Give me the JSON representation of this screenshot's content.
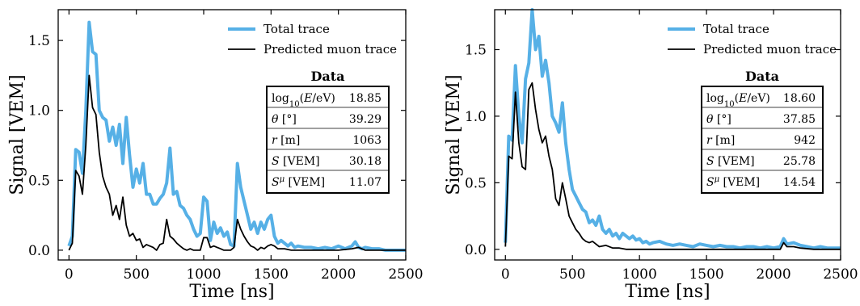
{
  "chart_data": [
    {
      "type": "line",
      "xlabel": "Time [ns]",
      "ylabel": "Signal [VEM]",
      "xlim": [
        -80,
        2500
      ],
      "ylim": [
        -0.07,
        1.72
      ],
      "xticks": [
        "0",
        "500",
        "1000",
        "1500",
        "2000",
        "2500"
      ],
      "yticks": [
        "0.0",
        "0.5",
        "1.0",
        "1.5"
      ],
      "xtick_values": [
        0,
        500,
        1000,
        1500,
        2000,
        2500
      ],
      "ytick_values": [
        0,
        0.5,
        1.0,
        1.5
      ],
      "legend": {
        "position": "top-right",
        "entries": [
          "Total trace",
          "Predicted muon trace"
        ]
      },
      "series": [
        {
          "name": "Total trace",
          "color": "#56b0e6",
          "x": [
            0,
            25,
            50,
            75,
            100,
            125,
            150,
            175,
            200,
            225,
            250,
            275,
            300,
            325,
            350,
            375,
            400,
            425,
            450,
            475,
            500,
            525,
            550,
            575,
            600,
            625,
            650,
            675,
            700,
            725,
            750,
            775,
            800,
            825,
            850,
            875,
            900,
            925,
            950,
            975,
            1000,
            1025,
            1050,
            1075,
            1100,
            1125,
            1150,
            1175,
            1200,
            1225,
            1250,
            1275,
            1300,
            1325,
            1350,
            1375,
            1400,
            1425,
            1450,
            1475,
            1500,
            1525,
            1550,
            1575,
            1600,
            1625,
            1650,
            1675,
            1700,
            1750,
            1800,
            1850,
            1900,
            1950,
            2000,
            2050,
            2100,
            2125,
            2150,
            2175,
            2200,
            2250,
            2300,
            2350,
            2400,
            2450,
            2500
          ],
          "y": [
            0.03,
            0.1,
            0.72,
            0.7,
            0.55,
            1.0,
            1.63,
            1.42,
            1.4,
            1.0,
            0.95,
            0.93,
            0.78,
            0.88,
            0.75,
            0.9,
            0.62,
            0.95,
            0.68,
            0.45,
            0.58,
            0.48,
            0.62,
            0.4,
            0.4,
            0.33,
            0.33,
            0.37,
            0.4,
            0.48,
            0.73,
            0.4,
            0.42,
            0.32,
            0.3,
            0.25,
            0.22,
            0.15,
            0.1,
            0.12,
            0.38,
            0.35,
            0.07,
            0.2,
            0.12,
            0.16,
            0.1,
            0.13,
            0.04,
            0.03,
            0.62,
            0.45,
            0.35,
            0.25,
            0.15,
            0.2,
            0.12,
            0.2,
            0.15,
            0.22,
            0.25,
            0.1,
            0.05,
            0.07,
            0.05,
            0.03,
            0.05,
            0.02,
            0.03,
            0.02,
            0.02,
            0.01,
            0.02,
            0.01,
            0.03,
            0.01,
            0.03,
            0.06,
            0.02,
            0.01,
            0.02,
            0.01,
            0.01,
            0.0,
            0.0,
            0.0,
            0.0
          ]
        },
        {
          "name": "Predicted muon trace",
          "color": "#000000",
          "x": [
            0,
            25,
            50,
            75,
            100,
            125,
            150,
            175,
            200,
            225,
            250,
            275,
            300,
            325,
            350,
            375,
            400,
            425,
            450,
            475,
            500,
            525,
            550,
            575,
            600,
            625,
            650,
            675,
            700,
            725,
            750,
            775,
            800,
            825,
            850,
            875,
            900,
            925,
            950,
            975,
            1000,
            1025,
            1050,
            1075,
            1100,
            1125,
            1150,
            1175,
            1200,
            1225,
            1250,
            1275,
            1300,
            1325,
            1350,
            1375,
            1400,
            1425,
            1450,
            1475,
            1500,
            1525,
            1550,
            1575,
            1600,
            1650,
            1700,
            1800,
            1900,
            2000,
            2100,
            2150,
            2200,
            2300,
            2400,
            2500
          ],
          "y": [
            0.0,
            0.05,
            0.57,
            0.53,
            0.4,
            0.75,
            1.25,
            1.02,
            0.97,
            0.7,
            0.53,
            0.45,
            0.4,
            0.25,
            0.32,
            0.22,
            0.38,
            0.18,
            0.1,
            0.12,
            0.07,
            0.08,
            0.02,
            0.04,
            0.03,
            0.02,
            0.0,
            0.04,
            0.05,
            0.22,
            0.1,
            0.08,
            0.05,
            0.03,
            0.01,
            0.0,
            0.01,
            0.0,
            0.0,
            0.0,
            0.09,
            0.09,
            0.02,
            0.03,
            0.02,
            0.01,
            0.0,
            0.0,
            0.0,
            0.02,
            0.22,
            0.15,
            0.1,
            0.06,
            0.03,
            0.02,
            0.0,
            0.02,
            0.01,
            0.03,
            0.04,
            0.03,
            0.01,
            0.01,
            0.01,
            0.0,
            0.0,
            0.0,
            0.0,
            0.0,
            0.01,
            0.02,
            0.0,
            0.0,
            0.0,
            0.0
          ]
        }
      ],
      "table": {
        "title": "Data",
        "rows": [
          {
            "label": "log10(E/eV)",
            "value": "18.85"
          },
          {
            "label": "θ [°]",
            "value": "39.29"
          },
          {
            "label": "r [m]",
            "value": "1063"
          },
          {
            "label": "S [VEM]",
            "value": "30.18"
          },
          {
            "label": "S^μ [VEM]",
            "value": "11.07"
          }
        ]
      }
    },
    {
      "type": "line",
      "xlabel": "Time [ns]",
      "ylabel": "Signal [VEM]",
      "xlim": [
        -80,
        2500
      ],
      "ylim": [
        -0.08,
        1.8
      ],
      "xticks": [
        "0",
        "500",
        "1000",
        "1500",
        "2000",
        "2500"
      ],
      "yticks": [
        "0.0",
        "0.5",
        "1.0",
        "1.5"
      ],
      "xtick_values": [
        0,
        500,
        1000,
        1500,
        2000,
        2500
      ],
      "ytick_values": [
        0,
        0.5,
        1.0,
        1.5
      ],
      "legend": {
        "position": "top-right",
        "entries": [
          "Total trace",
          "Predicted muon trace"
        ]
      },
      "series": [
        {
          "name": "Total trace",
          "color": "#56b0e6",
          "x": [
            0,
            25,
            50,
            75,
            100,
            125,
            150,
            175,
            200,
            225,
            250,
            275,
            300,
            325,
            350,
            375,
            400,
            425,
            450,
            475,
            500,
            525,
            550,
            575,
            600,
            625,
            650,
            675,
            700,
            725,
            750,
            775,
            800,
            825,
            850,
            875,
            900,
            925,
            950,
            975,
            1000,
            1025,
            1050,
            1075,
            1100,
            1150,
            1200,
            1250,
            1300,
            1350,
            1400,
            1450,
            1500,
            1550,
            1600,
            1650,
            1700,
            1750,
            1800,
            1850,
            1900,
            1950,
            2000,
            2050,
            2075,
            2100,
            2150,
            2200,
            2250,
            2300,
            2350,
            2400,
            2450,
            2500
          ],
          "y": [
            0.05,
            0.85,
            0.82,
            1.38,
            1.0,
            0.8,
            1.28,
            1.4,
            1.8,
            1.5,
            1.6,
            1.3,
            1.42,
            1.25,
            1.0,
            0.95,
            0.88,
            1.1,
            0.8,
            0.6,
            0.45,
            0.4,
            0.35,
            0.3,
            0.28,
            0.2,
            0.22,
            0.18,
            0.25,
            0.15,
            0.12,
            0.15,
            0.1,
            0.12,
            0.08,
            0.12,
            0.1,
            0.08,
            0.1,
            0.07,
            0.08,
            0.05,
            0.06,
            0.04,
            0.05,
            0.06,
            0.04,
            0.03,
            0.04,
            0.03,
            0.02,
            0.04,
            0.03,
            0.02,
            0.03,
            0.02,
            0.02,
            0.01,
            0.02,
            0.02,
            0.01,
            0.02,
            0.01,
            0.02,
            0.08,
            0.04,
            0.05,
            0.03,
            0.02,
            0.01,
            0.02,
            0.01,
            0.01,
            0.01
          ]
        },
        {
          "name": "Predicted muon trace",
          "color": "#000000",
          "x": [
            0,
            25,
            50,
            75,
            100,
            125,
            150,
            175,
            200,
            225,
            250,
            275,
            300,
            325,
            350,
            375,
            400,
            425,
            450,
            475,
            500,
            525,
            550,
            575,
            600,
            625,
            650,
            675,
            700,
            750,
            800,
            850,
            900,
            950,
            1000,
            1100,
            1200,
            1300,
            1400,
            1500,
            1600,
            1700,
            1800,
            1900,
            2000,
            2050,
            2075,
            2100,
            2150,
            2200,
            2300,
            2400,
            2500
          ],
          "y": [
            0.02,
            0.7,
            0.68,
            1.18,
            0.8,
            0.62,
            0.6,
            1.2,
            1.25,
            1.05,
            0.9,
            0.8,
            0.85,
            0.7,
            0.6,
            0.38,
            0.33,
            0.5,
            0.38,
            0.25,
            0.2,
            0.15,
            0.12,
            0.08,
            0.06,
            0.05,
            0.06,
            0.04,
            0.02,
            0.03,
            0.01,
            0.01,
            0.0,
            0.0,
            0.0,
            0.0,
            0.0,
            0.0,
            0.0,
            0.0,
            0.0,
            0.0,
            0.0,
            0.0,
            0.0,
            0.0,
            0.05,
            0.02,
            0.02,
            0.01,
            0.0,
            0.0,
            0.0
          ]
        }
      ],
      "table": {
        "title": "Data",
        "rows": [
          {
            "label": "log10(E/eV)",
            "value": "18.60"
          },
          {
            "label": "θ [°]",
            "value": "37.85"
          },
          {
            "label": "r [m]",
            "value": "942"
          },
          {
            "label": "S [VEM]",
            "value": "25.78"
          },
          {
            "label": "S^μ [VEM]",
            "value": "14.54"
          }
        ]
      }
    }
  ]
}
